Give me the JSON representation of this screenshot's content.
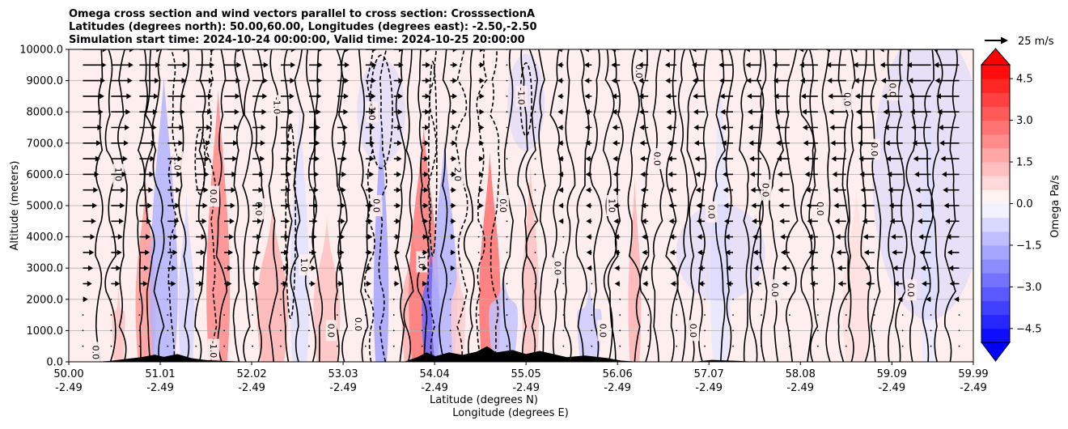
{
  "chart_data": {
    "type": "contour",
    "title_lines": [
      "Omega cross section and wind vectors parallel to cross section: CrosssectionA",
      "Latitudes (degrees north): 50.00,60.00, Longitudes (degrees east): -2.50,-2.50",
      "Simulation start time: 2024-10-24 00:00:00, Valid time: 2024-10-25 20:00:00"
    ],
    "ylabel": "Altitude (meters)",
    "xlabel_lat": "Latitude (degrees N)",
    "xlabel_lon": "Longitude (degrees E)",
    "ylim": [
      0,
      10000
    ],
    "y_ticks": [
      "0.0",
      "1000.0",
      "2000.0",
      "3000.0",
      "4000.0",
      "5000.0",
      "6000.0",
      "7000.0",
      "8000.0",
      "9000.0",
      "10000.0"
    ],
    "x_range": [
      50.0,
      59.99
    ],
    "x_ticks_lat": [
      "50.00",
      "51.01",
      "52.02",
      "53.03",
      "54.04",
      "55.05",
      "56.06",
      "57.07",
      "58.08",
      "59.09",
      "59.99"
    ],
    "x_ticks_lon": [
      "-2.49",
      "-2.49",
      "-2.49",
      "-2.49",
      "-2.49",
      "-2.49",
      "-2.49",
      "-2.49",
      "-2.49",
      "-2.49",
      "-2.49"
    ],
    "colorbar": {
      "label": "Omega Pa/s",
      "range": [
        -5.0,
        5.0
      ],
      "ticks": [
        "4.5",
        "3.0",
        "1.5",
        "0.0",
        "−1.5",
        "−3.0",
        "−4.5"
      ],
      "low_color": "#0000ff",
      "mid_color": "#ffffff",
      "high_color": "#ff0000"
    },
    "quiver_key": "25 m/s",
    "contour_labels": [
      "0.0",
      "1.0",
      "-1.0",
      "2.0"
    ],
    "omega_columns": [
      {
        "lat": 50.55,
        "value": 1.2
      },
      {
        "lat": 50.85,
        "value": 2.0
      },
      {
        "lat": 51.05,
        "value": -1.5
      },
      {
        "lat": 51.3,
        "value": -0.8
      },
      {
        "lat": 51.65,
        "value": 2.3
      },
      {
        "lat": 52.25,
        "value": 1.5
      },
      {
        "lat": 52.55,
        "value": -0.6
      },
      {
        "lat": 52.85,
        "value": 1.2
      },
      {
        "lat": 53.45,
        "value": -1.8
      },
      {
        "lat": 53.8,
        "value": 1.5
      },
      {
        "lat": 53.92,
        "value": 2.6
      },
      {
        "lat": 54.0,
        "value": -3.0
      },
      {
        "lat": 54.15,
        "value": -1.5
      },
      {
        "lat": 54.3,
        "value": 1.0
      },
      {
        "lat": 54.65,
        "value": 2.8
      },
      {
        "lat": 54.8,
        "value": -1.2
      },
      {
        "lat": 55.1,
        "value": 1.2
      },
      {
        "lat": 55.75,
        "value": -1.0
      },
      {
        "lat": 56.25,
        "value": 1.5
      },
      {
        "lat": 57.2,
        "value": -0.5
      },
      {
        "lat": 58.7,
        "value": 0.6
      },
      {
        "lat": 59.5,
        "value": -0.4
      }
    ],
    "terrain": [
      {
        "lat": 50.3,
        "alt": 0
      },
      {
        "lat": 50.45,
        "alt": 30
      },
      {
        "lat": 50.6,
        "alt": 80
      },
      {
        "lat": 50.8,
        "alt": 150
      },
      {
        "lat": 50.95,
        "alt": 230
      },
      {
        "lat": 51.05,
        "alt": 160
      },
      {
        "lat": 51.2,
        "alt": 250
      },
      {
        "lat": 51.35,
        "alt": 120
      },
      {
        "lat": 51.5,
        "alt": 60
      },
      {
        "lat": 51.7,
        "alt": 30
      },
      {
        "lat": 52.0,
        "alt": 0
      },
      {
        "lat": 53.7,
        "alt": 0
      },
      {
        "lat": 53.85,
        "alt": 150
      },
      {
        "lat": 53.95,
        "alt": 300
      },
      {
        "lat": 54.05,
        "alt": 180
      },
      {
        "lat": 54.2,
        "alt": 300
      },
      {
        "lat": 54.35,
        "alt": 220
      },
      {
        "lat": 54.5,
        "alt": 320
      },
      {
        "lat": 54.62,
        "alt": 500
      },
      {
        "lat": 54.72,
        "alt": 300
      },
      {
        "lat": 54.9,
        "alt": 380
      },
      {
        "lat": 55.05,
        "alt": 250
      },
      {
        "lat": 55.2,
        "alt": 350
      },
      {
        "lat": 55.35,
        "alt": 250
      },
      {
        "lat": 55.5,
        "alt": 150
      },
      {
        "lat": 55.7,
        "alt": 200
      },
      {
        "lat": 55.95,
        "alt": 120
      },
      {
        "lat": 56.1,
        "alt": 40
      },
      {
        "lat": 56.3,
        "alt": 0
      },
      {
        "lat": 56.9,
        "alt": 0
      },
      {
        "lat": 57.1,
        "alt": 60
      },
      {
        "lat": 57.4,
        "alt": 30
      },
      {
        "lat": 57.6,
        "alt": 0
      }
    ]
  }
}
